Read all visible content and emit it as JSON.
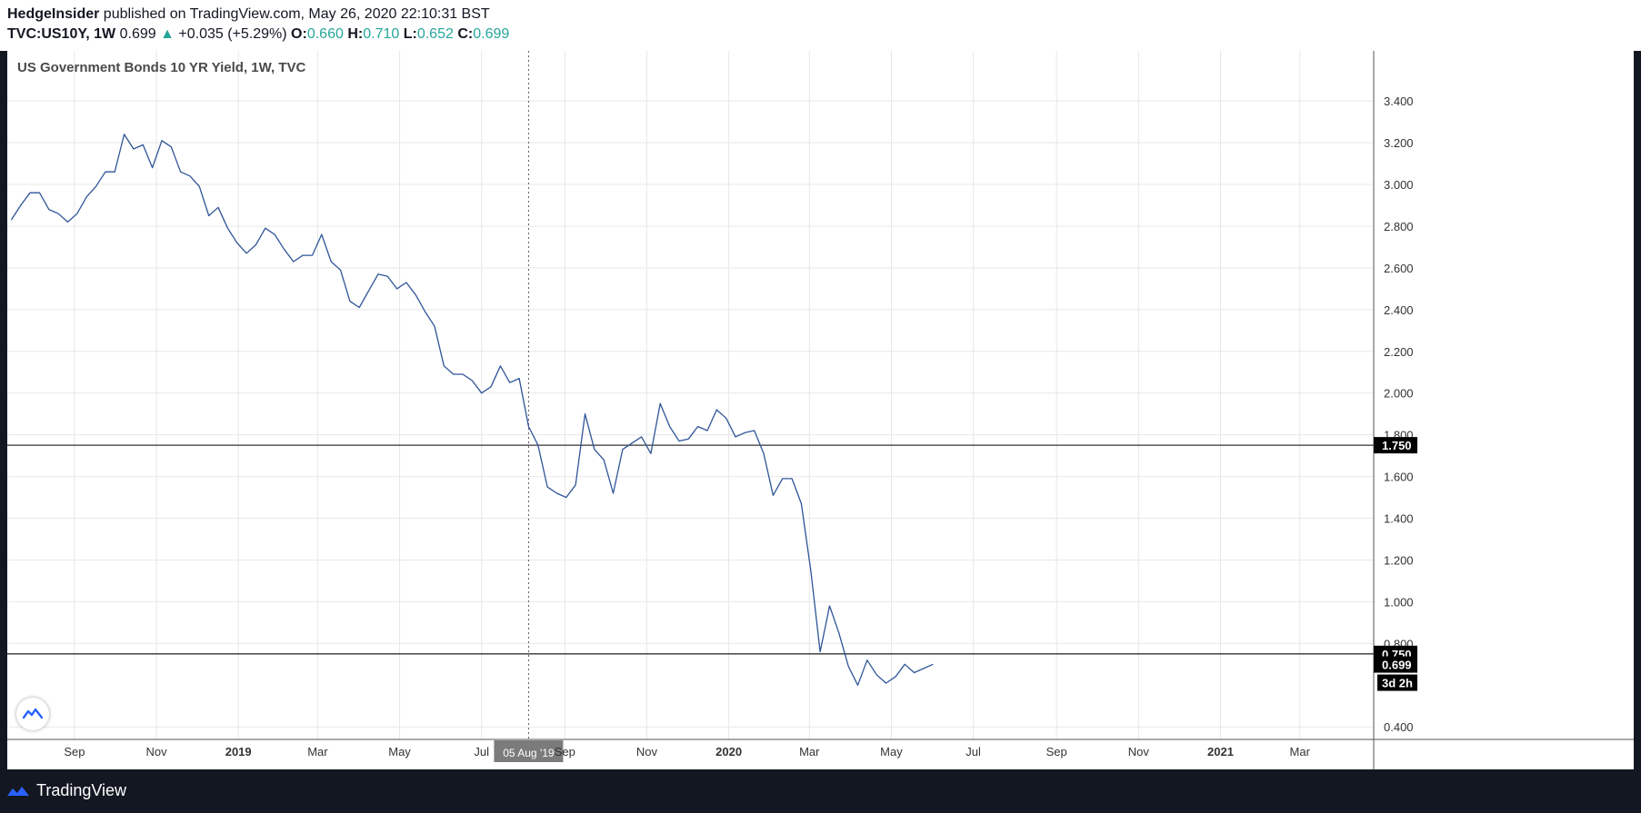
{
  "header": {
    "author": "HedgeInsider",
    "published_text": " published on TradingView.com, May 26, 2020 22:10:31 BST",
    "symbol": "TVC:US10Y",
    "interval": "1W",
    "last": "0.699",
    "change_arrow": "▲",
    "change": "+0.035 (+5.29%)",
    "open_label": "O:",
    "open": "0.660",
    "high_label": "H:",
    "high": "0.710",
    "low_label": "L:",
    "low": "0.652",
    "close_label": "C:",
    "close": "0.699"
  },
  "chart_title": "US Government Bonds 10 YR Yield, 1W, TVC",
  "footer": {
    "brand": "TradingView"
  },
  "colors": {
    "line": "#2f5597",
    "grid": "#e8e8e8",
    "hline": "#333333",
    "teal": "#26a69a",
    "crosshair_tag": "#7b7b7b",
    "label_bg": "#000000"
  },
  "chart_data": {
    "type": "line",
    "title": "US Government Bonds 10 YR Yield, 1W, TVC",
    "xlabel": "",
    "ylabel": "",
    "ylim": [
      0.34,
      3.64
    ],
    "xlim": [
      "2018-07-13",
      "2021-04-25"
    ],
    "grid": true,
    "y_ticks": [
      "3.400",
      "3.200",
      "3.000",
      "2.800",
      "2.600",
      "2.400",
      "2.200",
      "2.000",
      "1.800",
      "1.600",
      "1.400",
      "1.200",
      "1.000",
      "0.800",
      "0.400"
    ],
    "x_ticks": [
      {
        "label": "Sep",
        "date": "2018-09-01",
        "bold": false
      },
      {
        "label": "Nov",
        "date": "2018-11-01",
        "bold": false
      },
      {
        "label": "2019",
        "date": "2019-01-01",
        "bold": true
      },
      {
        "label": "Mar",
        "date": "2019-03-01",
        "bold": false
      },
      {
        "label": "May",
        "date": "2019-05-01",
        "bold": false
      },
      {
        "label": "Jul",
        "date": "2019-07-01",
        "bold": false
      },
      {
        "label": "Sep",
        "date": "2019-09-01",
        "bold": false
      },
      {
        "label": "Nov",
        "date": "2019-11-01",
        "bold": false
      },
      {
        "label": "2020",
        "date": "2020-01-01",
        "bold": true
      },
      {
        "label": "Mar",
        "date": "2020-03-01",
        "bold": false
      },
      {
        "label": "May",
        "date": "2020-05-01",
        "bold": false
      },
      {
        "label": "Jul",
        "date": "2020-07-01",
        "bold": false
      },
      {
        "label": "Sep",
        "date": "2020-09-01",
        "bold": false
      },
      {
        "label": "Nov",
        "date": "2020-11-01",
        "bold": false
      },
      {
        "label": "2021",
        "date": "2021-01-01",
        "bold": true
      },
      {
        "label": "Mar",
        "date": "2021-03-01",
        "bold": false
      }
    ],
    "series": [
      {
        "start_date": "2018-07-16",
        "step_days": 7,
        "values": [
          2.83,
          2.9,
          2.96,
          2.96,
          2.88,
          2.86,
          2.82,
          2.86,
          2.94,
          2.99,
          3.06,
          3.06,
          3.24,
          3.17,
          3.19,
          3.08,
          3.21,
          3.18,
          3.06,
          3.04,
          2.99,
          2.85,
          2.89,
          2.79,
          2.72,
          2.67,
          2.71,
          2.79,
          2.76,
          2.69,
          2.63,
          2.66,
          2.66,
          2.76,
          2.63,
          2.59,
          2.44,
          2.41,
          2.49,
          2.57,
          2.56,
          2.5,
          2.53,
          2.47,
          2.39,
          2.32,
          2.13,
          2.09,
          2.09,
          2.06,
          2.0,
          2.03,
          2.13,
          2.05,
          2.07,
          1.84,
          1.75,
          1.55,
          1.52,
          1.5,
          1.56,
          1.9,
          1.73,
          1.68,
          1.52,
          1.73,
          1.76,
          1.79,
          1.71,
          1.95,
          1.84,
          1.77,
          1.78,
          1.84,
          1.82,
          1.92,
          1.88,
          1.79,
          1.81,
          1.82,
          1.71,
          1.51,
          1.59,
          1.59,
          1.47,
          1.15,
          0.76,
          0.98,
          0.85,
          0.69,
          0.6,
          0.72,
          0.65,
          0.61,
          0.64,
          0.7,
          0.66,
          0.68,
          0.7
        ]
      }
    ],
    "horizontal_lines": [
      {
        "value": 1.75,
        "label": "1.750"
      },
      {
        "value": 0.75,
        "label": "0.750"
      }
    ],
    "last_value_label": "0.699",
    "countdown_label": "3d 2h",
    "crosshair": {
      "date": "2019-08-05",
      "label": "05 Aug '19"
    }
  }
}
